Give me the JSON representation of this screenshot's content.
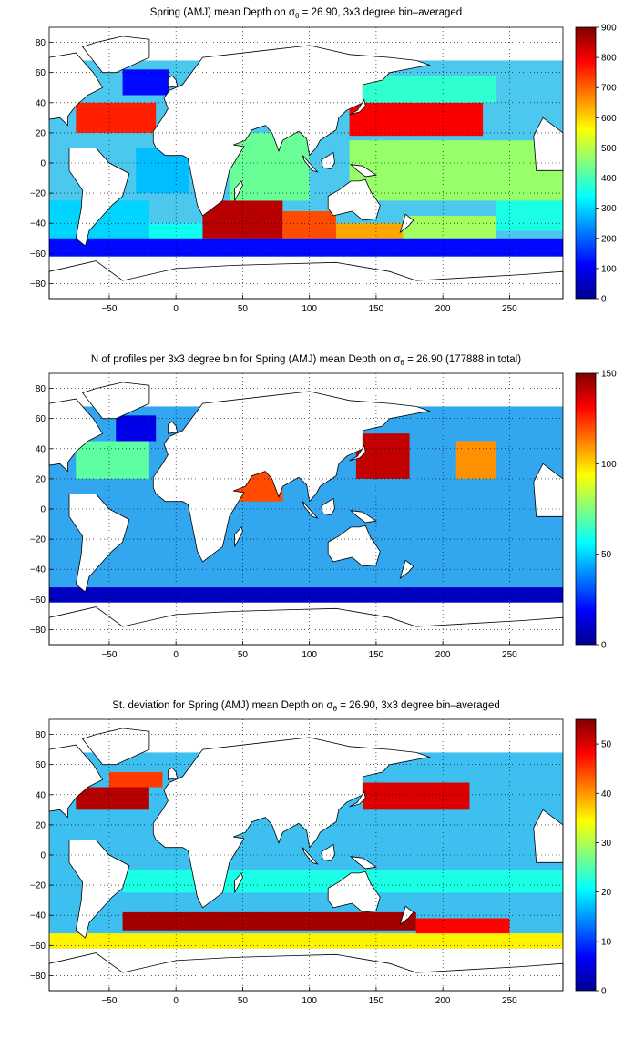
{
  "colormap": "jet",
  "panels": [
    {
      "title_pre": "Spring (AMJ) mean Depth on ",
      "title_sigma": "σ",
      "title_sub": "θ",
      "title_post": " = 26.90, 3x3 degree bin–averaged",
      "ocean_fill": "#4cc8ee"
    },
    {
      "title_pre": "N of profiles per 3x3 degree bin for Spring (AMJ) mean Depth on ",
      "title_sigma": "σ",
      "title_sub": "θ",
      "title_post": " = 26.90 (177888 in total)",
      "ocean_fill": "#33a6f0"
    },
    {
      "title_pre": "St. deviation for Spring (AMJ) mean Depth on ",
      "title_sigma": "σ",
      "title_sub": "θ",
      "title_post": " = 26.90, 3x3 degree bin–averaged",
      "ocean_fill": "#3dc0f0"
    }
  ],
  "chart_data": [
    {
      "type": "heatmap",
      "title": "Spring (AMJ) mean Depth on σθ = 26.90, 3x3 degree bin–averaged",
      "xlim": [
        -95,
        290
      ],
      "ylim": [
        -90,
        90
      ],
      "xticks": [
        -50,
        0,
        50,
        100,
        150,
        200,
        250
      ],
      "yticks": [
        80,
        60,
        40,
        20,
        0,
        -20,
        -40,
        -60,
        -80
      ],
      "grid": true,
      "colorbar": {
        "cmin": 0,
        "cmax": 900,
        "ticks": [
          900,
          800,
          700,
          600,
          500,
          400,
          300,
          200,
          100,
          0
        ]
      },
      "regions": [
        {
          "lon": [
            -95,
            -20
          ],
          "lat": [
            -60,
            -25
          ],
          "value": 300
        },
        {
          "lon": [
            -20,
            20
          ],
          "lat": [
            -60,
            -40
          ],
          "value": 350
        },
        {
          "lon": [
            20,
            80
          ],
          "lat": [
            -50,
            -25
          ],
          "value": 850
        },
        {
          "lon": [
            80,
            120
          ],
          "lat": [
            -50,
            -32
          ],
          "value": 720
        },
        {
          "lon": [
            120,
            170
          ],
          "lat": [
            -50,
            -40
          ],
          "value": 640
        },
        {
          "lon": [
            170,
            240
          ],
          "lat": [
            -50,
            -35
          ],
          "value": 480
        },
        {
          "lon": [
            240,
            290
          ],
          "lat": [
            -45,
            -25
          ],
          "value": 360
        },
        {
          "lon": [
            -95,
            290
          ],
          "lat": [
            -62,
            -50
          ],
          "value": 120
        },
        {
          "lon": [
            -75,
            -15
          ],
          "lat": [
            20,
            40
          ],
          "value": 760
        },
        {
          "lon": [
            -40,
            -5
          ],
          "lat": [
            45,
            62
          ],
          "value": 120
        },
        {
          "lon": [
            130,
            230
          ],
          "lat": [
            18,
            40
          ],
          "value": 790
        },
        {
          "lon": [
            140,
            240
          ],
          "lat": [
            40,
            58
          ],
          "value": 380
        },
        {
          "lon": [
            -30,
            10
          ],
          "lat": [
            -20,
            10
          ],
          "value": 280
        },
        {
          "lon": [
            40,
            100
          ],
          "lat": [
            -25,
            20
          ],
          "value": 430
        },
        {
          "lon": [
            130,
            290
          ],
          "lat": [
            -25,
            15
          ],
          "value": 470
        }
      ]
    },
    {
      "type": "heatmap",
      "title": "N of profiles per 3x3 degree bin for Spring (AMJ) mean Depth on σθ = 26.90 (177888 in total)",
      "xlim": [
        -95,
        290
      ],
      "ylim": [
        -90,
        90
      ],
      "xticks": [
        -50,
        0,
        50,
        100,
        150,
        200,
        250
      ],
      "yticks": [
        80,
        60,
        40,
        20,
        0,
        -20,
        -40,
        -60,
        -80
      ],
      "grid": true,
      "colorbar": {
        "cmin": 0,
        "cmax": 150,
        "ticks": [
          150,
          100,
          50,
          0
        ]
      },
      "regions": [
        {
          "lon": [
            135,
            175
          ],
          "lat": [
            20,
            50
          ],
          "value": 140
        },
        {
          "lon": [
            210,
            240
          ],
          "lat": [
            20,
            45
          ],
          "value": 110
        },
        {
          "lon": [
            40,
            80
          ],
          "lat": [
            5,
            25
          ],
          "value": 120
        },
        {
          "lon": [
            -45,
            -15
          ],
          "lat": [
            45,
            62
          ],
          "value": 15
        },
        {
          "lon": [
            -95,
            290
          ],
          "lat": [
            -62,
            -52
          ],
          "value": 10
        },
        {
          "lon": [
            -75,
            -20
          ],
          "lat": [
            20,
            45
          ],
          "value": 70
        }
      ]
    },
    {
      "type": "heatmap",
      "title": "St. deviation for Spring (AMJ) mean Depth on σθ = 26.90, 3x3 degree bin–averaged",
      "xlim": [
        -95,
        290
      ],
      "ylim": [
        -90,
        90
      ],
      "xticks": [
        -50,
        0,
        50,
        100,
        150,
        200,
        250
      ],
      "yticks": [
        80,
        60,
        40,
        20,
        0,
        -20,
        -40,
        -60,
        -80
      ],
      "grid": true,
      "colorbar": {
        "cmin": 0,
        "cmax": 55,
        "ticks": [
          50,
          40,
          30,
          20,
          10,
          0
        ]
      },
      "regions": [
        {
          "lon": [
            -75,
            -20
          ],
          "lat": [
            30,
            45
          ],
          "value": 52
        },
        {
          "lon": [
            -50,
            -10
          ],
          "lat": [
            45,
            55
          ],
          "value": 45
        },
        {
          "lon": [
            140,
            220
          ],
          "lat": [
            30,
            48
          ],
          "value": 50
        },
        {
          "lon": [
            -40,
            180
          ],
          "lat": [
            -50,
            -38
          ],
          "value": 53
        },
        {
          "lon": [
            180,
            250
          ],
          "lat": [
            -55,
            -42
          ],
          "value": 48
        },
        {
          "lon": [
            -95,
            290
          ],
          "lat": [
            -62,
            -52
          ],
          "value": 35
        },
        {
          "lon": [
            -40,
            290
          ],
          "lat": [
            -25,
            -10
          ],
          "value": 22
        }
      ]
    }
  ]
}
